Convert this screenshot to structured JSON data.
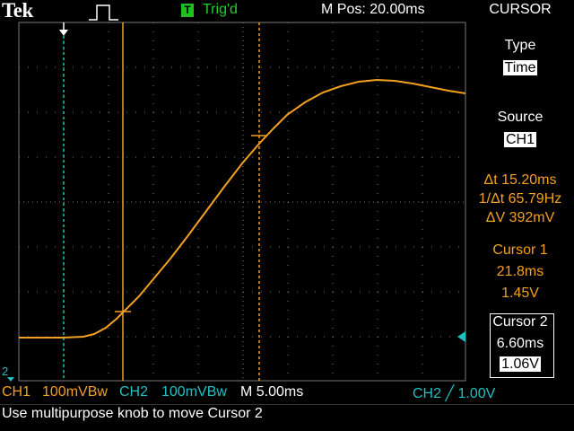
{
  "header": {
    "brand": "Tek",
    "trigger_badge": "T",
    "trigger_state": "Trig'd",
    "m_pos": "M Pos: 20.00ms",
    "menu_title": "CURSOR"
  },
  "side_menu": {
    "type_label": "Type",
    "type_value": "Time",
    "source_label": "Source",
    "source_value": "CH1",
    "delta_t": "Δt 15.20ms",
    "inv_delta_t": "1/Δt 65.79Hz",
    "delta_v": "ΔV 392mV",
    "cursor1_label": "Cursor 1",
    "cursor1_time": "21.8ms",
    "cursor1_volt": "1.45V",
    "cursor2_label": "Cursor 2",
    "cursor2_time": "6.60ms",
    "cursor2_volt": "1.06V"
  },
  "status": {
    "ch1": "CH1",
    "ch1_scale": "100mVBw",
    "ch2": "CH2",
    "ch2_scale": "100mVBw",
    "timebase": "M 5.00ms",
    "trigger": "CH2 ╱ 1.00V",
    "message": "Use multipurpose knob to move Cursor 2",
    "ch2_marker": "2"
  },
  "colors": {
    "ch1": "#f2a020",
    "ch2": "#20c0c0",
    "grid": "#7a7a7a",
    "trig_ok": "#20d020"
  }
}
